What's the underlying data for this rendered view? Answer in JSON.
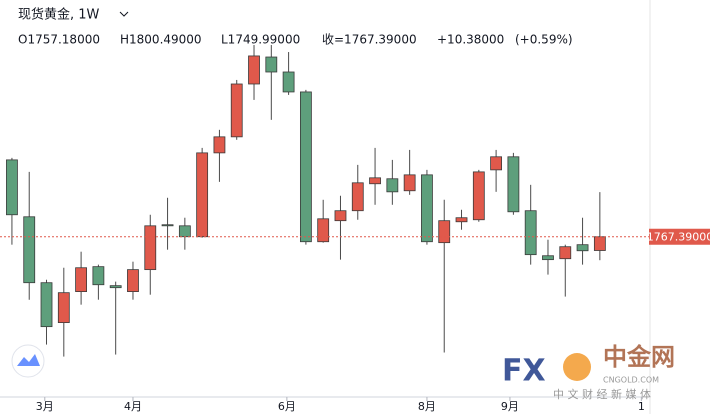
{
  "chart_data": {
    "type": "candlestick",
    "title": "现货黄金, 1W",
    "ohlc_labels": [
      "O1757.18000",
      "H1800.49000",
      "L1749.99000",
      "收=1767.39000",
      "+10.38000",
      "(+0.59%)"
    ],
    "categories": [
      null,
      null,
      null,
      null,
      null,
      null,
      null,
      null,
      null,
      null,
      null,
      null,
      null,
      null,
      null,
      null,
      null,
      null,
      null,
      null,
      null,
      null,
      null,
      null,
      null,
      null,
      null,
      null,
      null,
      null,
      null,
      null,
      null,
      null,
      null
    ],
    "open": [
      1824.4,
      1782.2,
      1733.3,
      1703.7,
      1726.7,
      1745.2,
      1731.1,
      1726.7,
      1743.0,
      1776.3,
      1775.5,
      1767.4,
      1829.6,
      1841.5,
      1880.7,
      1900.7,
      1889.6,
      1874.8,
      1763.7,
      1779.3,
      1786.7,
      1806.7,
      1810.4,
      1801.5,
      1813.3,
      1763.0,
      1778.5,
      1780.0,
      1817.0,
      1826.7,
      1786.7,
      1753.3,
      1751.1,
      1761.5,
      1757.18
    ],
    "high": [
      1825.9,
      1815.5,
      1735.5,
      1744.4,
      1756.3,
      1746.7,
      1734.1,
      1748.9,
      1783.7,
      1796.3,
      1781.5,
      1833.3,
      1846.7,
      1883.7,
      1909.6,
      1909.6,
      1904.4,
      1876.3,
      1794.8,
      1797.8,
      1820.7,
      1833.3,
      1824.4,
      1831.8,
      1817.0,
      1794.8,
      1787.4,
      1817.0,
      1831.8,
      1829.6,
      1805.9,
      1765.2,
      1761.5,
      1781.5,
      1800.49
    ],
    "low": [
      1761.5,
      1720.7,
      1687.4,
      1678.5,
      1717.0,
      1720.7,
      1680.0,
      1720.7,
      1724.4,
      1757.8,
      1757.8,
      1766.7,
      1808.1,
      1839.3,
      1868.9,
      1854.1,
      1872.6,
      1761.5,
      1763.0,
      1750.4,
      1780.0,
      1791.1,
      1791.1,
      1798.5,
      1761.5,
      1681.5,
      1772.6,
      1778.5,
      1800.7,
      1783.7,
      1746.7,
      1739.3,
      1723.0,
      1746.7,
      1749.99
    ],
    "close": [
      1783.7,
      1733.3,
      1700.7,
      1725.9,
      1744.4,
      1731.8,
      1729.6,
      1743.0,
      1775.5,
      1775.5,
      1767.4,
      1829.6,
      1841.5,
      1880.7,
      1901.5,
      1889.6,
      1874.8,
      1763.7,
      1780.7,
      1786.7,
      1807.4,
      1811.1,
      1800.7,
      1813.3,
      1763.7,
      1779.3,
      1781.5,
      1815.5,
      1826.7,
      1785.9,
      1754.1,
      1750.4,
      1760.0,
      1757.0,
      1767.39
    ],
    "up_color": "#e0594b",
    "down_color": "#5e9f7c",
    "ylim": [
      1650,
      1943
    ],
    "xlim": [
      -0.69,
      36.9
    ],
    "xticks": [
      {
        "value": 1.9,
        "label": "3月"
      },
      {
        "value": 7.0,
        "label": "4月"
      },
      {
        "value": 15.9,
        "label": "6月"
      },
      {
        "value": 24.0,
        "label": "8月"
      },
      {
        "value": 28.8,
        "label": "9月"
      },
      {
        "value": 36.4,
        "label": "1"
      }
    ],
    "last_price_label": "1767.39000",
    "watermark": [
      "FX",
      "中金网",
      "CNGOLD.COM",
      "中 文 财 经 新 媒 体"
    ]
  }
}
